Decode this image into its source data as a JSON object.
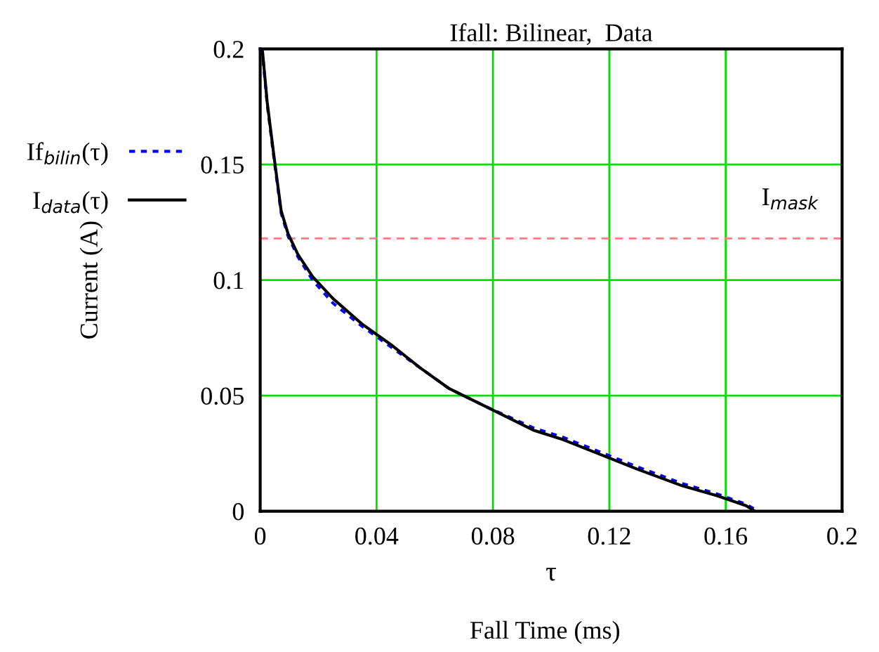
{
  "chart_data": {
    "type": "line",
    "title": "Ifall: Bilinear,  Data",
    "xlabel": "τ",
    "ylabel": "Current (A)",
    "annotations": [
      "Fall Time (ms)"
    ],
    "series": [
      {
        "name": "If$_{bilin}$(τ)",
        "color": "#0000ff",
        "line_style": "dotted",
        "x": [
          0,
          0.0008,
          0.0024,
          0.0048,
          0.0072,
          0.0096,
          0.013,
          0.018,
          0.025,
          0.035,
          0.045,
          0.055,
          0.065,
          0.078,
          0.094,
          0.104,
          0.118,
          0.13,
          0.145,
          0.157,
          0.167,
          0.171
        ],
        "values": [
          0.2,
          0.198,
          0.176,
          0.152,
          0.129,
          0.119,
          0.11,
          0.1,
          0.09,
          0.08,
          0.071,
          0.062,
          0.053,
          0.045,
          0.036,
          0.032,
          0.025,
          0.019,
          0.012,
          0.0075,
          0.003,
          0
        ]
      },
      {
        "name": "I$_{data}$(τ)",
        "color": "#000000",
        "line_style": "solid",
        "x": [
          0,
          0.0008,
          0.0024,
          0.0048,
          0.0072,
          0.0096,
          0.013,
          0.018,
          0.025,
          0.035,
          0.045,
          0.055,
          0.065,
          0.078,
          0.094,
          0.104,
          0.118,
          0.13,
          0.145,
          0.157,
          0.167,
          0.17
        ],
        "values": [
          0.2,
          0.199,
          0.177,
          0.153,
          0.13,
          0.12,
          0.111,
          0.1015,
          0.092,
          0.081,
          0.072,
          0.062,
          0.053,
          0.045,
          0.035,
          0.031,
          0.024,
          0.018,
          0.011,
          0.0067,
          0.0024,
          0
        ]
      }
    ],
    "ref_lines": [
      {
        "axis": "y",
        "value": 0.118,
        "label": "I$_{mask}$",
        "color": "#f08080",
        "line_style": "dashed"
      }
    ],
    "xlim": [
      0,
      0.2
    ],
    "ylim": [
      0,
      0.2
    ],
    "xticks": [
      0,
      0.04,
      0.08,
      0.12,
      0.16,
      0.2
    ],
    "yticks": [
      0,
      0.05,
      0.1,
      0.15,
      0.2
    ],
    "grid": true,
    "legend": "left",
    "marker": "none"
  }
}
